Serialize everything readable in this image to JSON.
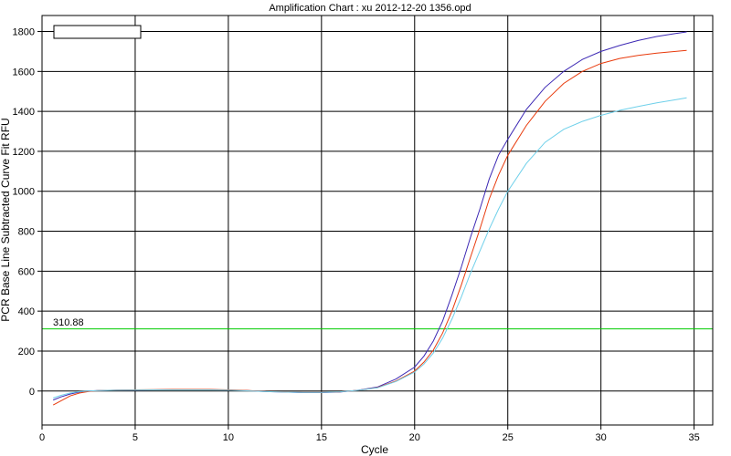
{
  "chart_data": {
    "type": "line",
    "title": "Amplification Chart : xu 2012-12-20 1356.opd",
    "xlabel": "Cycle",
    "ylabel": "PCR Base Line Subtracted Curve Fit RFU",
    "xlim": [
      0,
      36
    ],
    "ylim": [
      -170,
      1880
    ],
    "x_ticks": [
      0,
      5,
      10,
      15,
      20,
      25,
      30,
      35
    ],
    "y_ticks": [
      0,
      200,
      400,
      600,
      800,
      1000,
      1200,
      1400,
      1600,
      1800
    ],
    "grid": true,
    "legend": "top-left",
    "threshold": {
      "value": 310.88,
      "label": "310.88",
      "color": "#00cc00"
    },
    "series": [
      {
        "color": "#3c28b4",
        "x": [
          0.6,
          1,
          1.5,
          2,
          2.5,
          3,
          4,
          5,
          6,
          7,
          8,
          9,
          10,
          11,
          12,
          13,
          14,
          15,
          16,
          17,
          18,
          19,
          20,
          20.5,
          21,
          21.5,
          22,
          22.5,
          23,
          23.5,
          24,
          24.5,
          25,
          26,
          27,
          28,
          29,
          30,
          31,
          32,
          33,
          34,
          34.6
        ],
        "y": [
          -45,
          -30,
          -15,
          -5,
          0,
          2,
          4,
          5,
          6,
          7,
          7,
          7,
          5,
          2,
          -3,
          -5,
          -8,
          -8,
          -5,
          5,
          20,
          60,
          120,
          175,
          250,
          350,
          480,
          620,
          770,
          910,
          1060,
          1180,
          1260,
          1410,
          1520,
          1600,
          1660,
          1700,
          1730,
          1755,
          1775,
          1790,
          1798
        ]
      },
      {
        "color": "#e83a0c",
        "x": [
          0.6,
          1,
          1.5,
          2,
          2.5,
          3,
          4,
          5,
          6,
          7,
          8,
          9,
          10,
          11,
          12,
          13,
          14,
          15,
          16,
          17,
          18,
          19,
          20,
          20.5,
          21,
          21.5,
          22,
          22.5,
          23,
          23.5,
          24,
          24.5,
          25,
          26,
          27,
          28,
          29,
          30,
          31,
          32,
          33,
          34,
          34.6
        ],
        "y": [
          -70,
          -50,
          -25,
          -10,
          -2,
          2,
          5,
          6,
          7,
          8,
          8,
          8,
          6,
          3,
          -2,
          -4,
          -7,
          -7,
          -4,
          4,
          17,
          50,
          100,
          145,
          205,
          290,
          400,
          530,
          670,
          810,
          960,
          1080,
          1180,
          1330,
          1450,
          1540,
          1600,
          1640,
          1665,
          1680,
          1692,
          1700,
          1705
        ]
      },
      {
        "color": "#6fd0ea",
        "x": [
          0.6,
          1,
          1.5,
          2,
          2.5,
          3,
          4,
          5,
          6,
          7,
          8,
          9,
          10,
          11,
          12,
          13,
          14,
          15,
          16,
          17,
          18,
          19,
          20,
          20.5,
          21,
          21.5,
          22,
          22.5,
          23,
          23.5,
          24,
          24.5,
          25,
          26,
          27,
          28,
          29,
          30,
          31,
          32,
          33,
          34,
          34.6
        ],
        "y": [
          -35,
          -22,
          -10,
          -3,
          0,
          2,
          4,
          5,
          6,
          6,
          6,
          6,
          4,
          1,
          -3,
          -5,
          -7,
          -7,
          -4,
          4,
          16,
          48,
          95,
          135,
          190,
          265,
          360,
          470,
          590,
          700,
          810,
          910,
          1000,
          1140,
          1245,
          1310,
          1350,
          1380,
          1405,
          1425,
          1443,
          1458,
          1468
        ]
      }
    ]
  }
}
